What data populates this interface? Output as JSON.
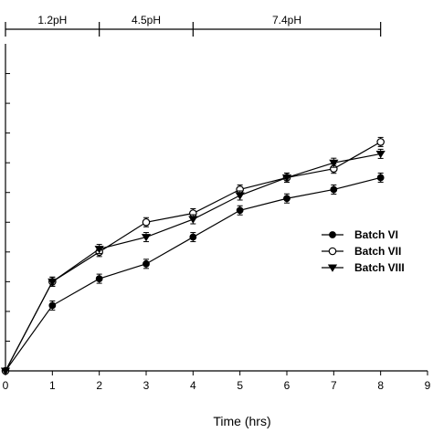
{
  "chart_data": {
    "type": "line",
    "title": "",
    "xlabel": "Time (hrs)",
    "ylabel": "",
    "xlim": [
      0,
      9
    ],
    "ylim": [
      0,
      110
    ],
    "x_ticks": [
      0,
      1,
      2,
      3,
      4,
      5,
      6,
      7,
      8,
      9
    ],
    "grid": false,
    "legend_position": "right",
    "ph_bands": [
      {
        "label": "1.2pH",
        "x_start": 0,
        "x_end": 2
      },
      {
        "label": "4.5pH",
        "x_start": 2,
        "x_end": 4
      },
      {
        "label": "7.4pH",
        "x_start": 4,
        "x_end": 8
      }
    ],
    "x": [
      0,
      1,
      2,
      3,
      4,
      5,
      6,
      7,
      8
    ],
    "series": [
      {
        "name": "Batch VI",
        "marker": "filled-circle",
        "values": [
          0,
          22,
          31,
          36,
          45,
          54,
          58,
          61,
          65
        ]
      },
      {
        "name": "Batch VII",
        "marker": "open-circle",
        "values": [
          0,
          30,
          40,
          50,
          53,
          61,
          65,
          68,
          77
        ]
      },
      {
        "name": "Batch VIII",
        "marker": "filled-triangle",
        "values": [
          0,
          30,
          41,
          45,
          51,
          59,
          65,
          70,
          73
        ]
      }
    ]
  }
}
